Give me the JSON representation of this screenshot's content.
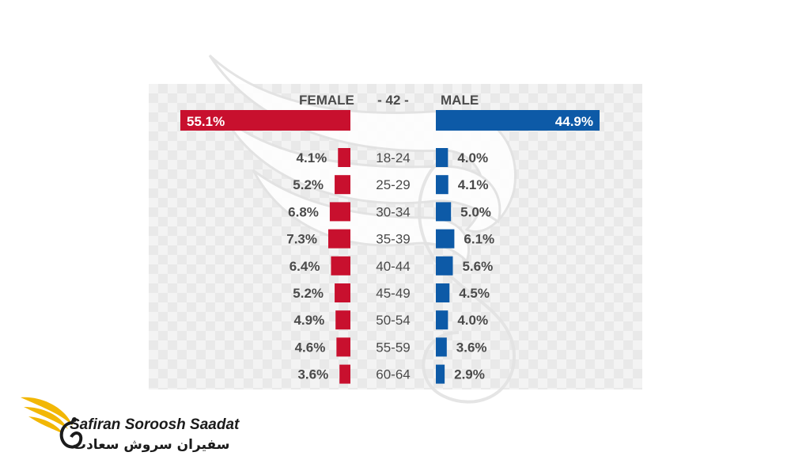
{
  "chart_data": {
    "type": "bar",
    "headers": {
      "female": "FEMALE",
      "center": "- 42 -",
      "male": "MALE"
    },
    "totals": {
      "female": "55.1%",
      "male": "44.9%"
    },
    "categories": [
      "18-24",
      "25-29",
      "30-34",
      "35-39",
      "40-44",
      "45-49",
      "50-54",
      "55-59",
      "60-64"
    ],
    "series": [
      {
        "name": "FEMALE",
        "values": [
          4.1,
          5.2,
          6.8,
          7.3,
          6.4,
          5.2,
          4.9,
          4.6,
          3.6
        ],
        "color": "#c8102e"
      },
      {
        "name": "MALE",
        "values": [
          4.0,
          4.1,
          5.0,
          6.1,
          5.6,
          4.5,
          4.0,
          3.6,
          2.9
        ],
        "color": "#0d5aa7"
      }
    ],
    "value_suffix": "%",
    "colors": {
      "female": "#c8102e",
      "male": "#0d5aa7"
    }
  },
  "brand": {
    "name_en": "Safiran Soroosh Saadat",
    "name_fa": "سفیران سروش سعادت",
    "icon": "wing-swan-logo"
  }
}
